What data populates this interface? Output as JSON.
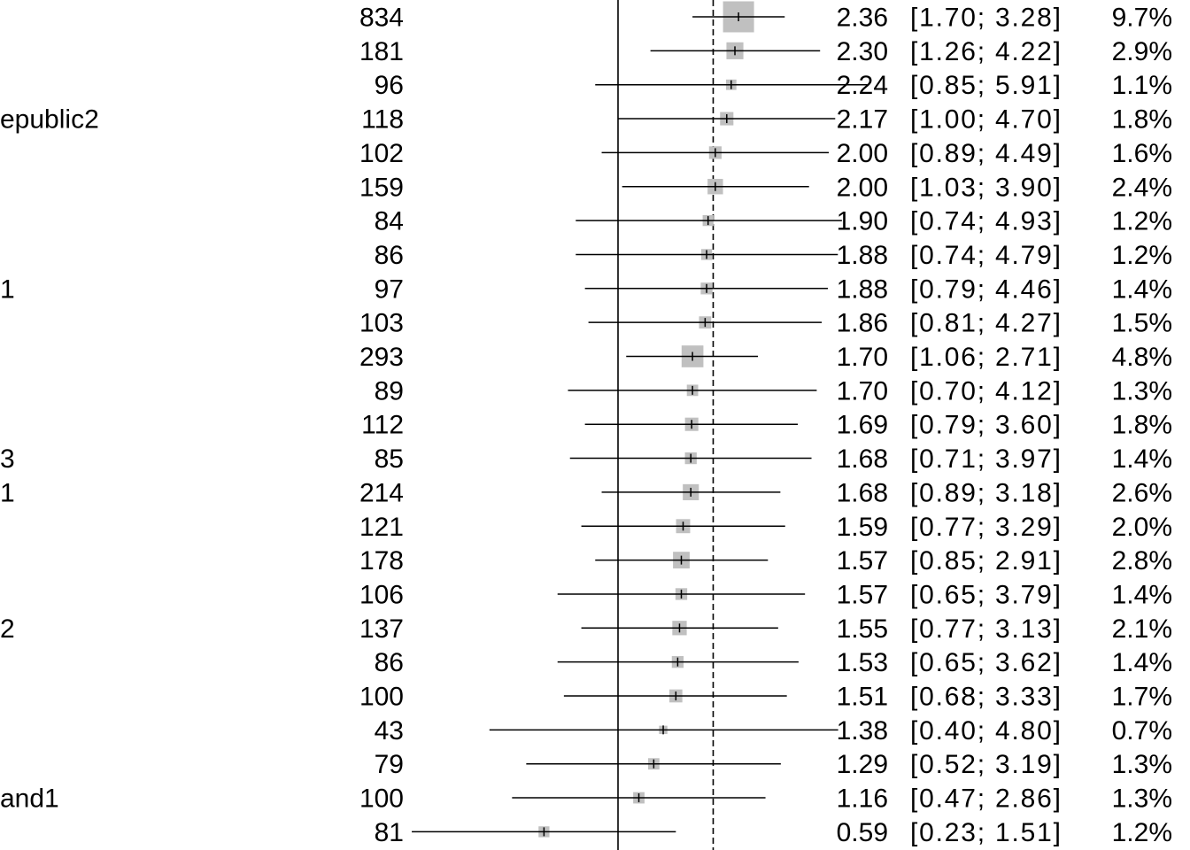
{
  "chart_data": {
    "type": "forest",
    "title": "",
    "xlabel": "",
    "reference_line": 1,
    "pooled_estimate_line": 1.97,
    "x_scale": "log",
    "columns": [
      "study",
      "total",
      "estimate",
      "ci",
      "weight"
    ],
    "rows": [
      {
        "study": "",
        "total": "834",
        "estimate": "2.36",
        "ci": "[1.70;  3.28]",
        "weight": "9.7%",
        "est": 2.36,
        "lo": 1.7,
        "hi": 3.28,
        "w": 9.7
      },
      {
        "study": "",
        "total": "181",
        "estimate": "2.30",
        "ci": "[1.26;  4.22]",
        "weight": "2.9%",
        "est": 2.3,
        "lo": 1.26,
        "hi": 4.22,
        "w": 2.9
      },
      {
        "study": "",
        "total": "96",
        "estimate": "2.24",
        "ci": "[0.85;  5.91]",
        "weight": "1.1%",
        "est": 2.24,
        "lo": 0.85,
        "hi": 5.91,
        "w": 1.1
      },
      {
        "study": "epublic2",
        "total": "118",
        "estimate": "2.17",
        "ci": "[1.00;  4.70]",
        "weight": "1.8%",
        "est": 2.17,
        "lo": 1.0,
        "hi": 4.7,
        "w": 1.8
      },
      {
        "study": "",
        "total": "102",
        "estimate": "2.00",
        "ci": "[0.89;  4.49]",
        "weight": "1.6%",
        "est": 2.0,
        "lo": 0.89,
        "hi": 4.49,
        "w": 1.6
      },
      {
        "study": "",
        "total": "159",
        "estimate": "2.00",
        "ci": "[1.03;  3.90]",
        "weight": "2.4%",
        "est": 2.0,
        "lo": 1.03,
        "hi": 3.9,
        "w": 2.4
      },
      {
        "study": "",
        "total": "84",
        "estimate": "1.90",
        "ci": "[0.74;  4.93]",
        "weight": "1.2%",
        "est": 1.9,
        "lo": 0.74,
        "hi": 4.93,
        "w": 1.2
      },
      {
        "study": "",
        "total": "86",
        "estimate": "1.88",
        "ci": "[0.74;  4.79]",
        "weight": "1.2%",
        "est": 1.88,
        "lo": 0.74,
        "hi": 4.79,
        "w": 1.2
      },
      {
        "study": "1",
        "total": "97",
        "estimate": "1.88",
        "ci": "[0.79;  4.46]",
        "weight": "1.4%",
        "est": 1.88,
        "lo": 0.79,
        "hi": 4.46,
        "w": 1.4
      },
      {
        "study": "",
        "total": "103",
        "estimate": "1.86",
        "ci": "[0.81;  4.27]",
        "weight": "1.5%",
        "est": 1.86,
        "lo": 0.81,
        "hi": 4.27,
        "w": 1.5
      },
      {
        "study": "",
        "total": "293",
        "estimate": "1.70",
        "ci": "[1.06;  2.71]",
        "weight": "4.8%",
        "est": 1.7,
        "lo": 1.06,
        "hi": 2.71,
        "w": 4.8
      },
      {
        "study": "",
        "total": "89",
        "estimate": "1.70",
        "ci": "[0.70;  4.12]",
        "weight": "1.3%",
        "est": 1.7,
        "lo": 0.7,
        "hi": 4.12,
        "w": 1.3
      },
      {
        "study": "",
        "total": "112",
        "estimate": "1.69",
        "ci": "[0.79;  3.60]",
        "weight": "1.8%",
        "est": 1.69,
        "lo": 0.79,
        "hi": 3.6,
        "w": 1.8
      },
      {
        "study": "3",
        "total": "85",
        "estimate": "1.68",
        "ci": "[0.71;  3.97]",
        "weight": "1.4%",
        "est": 1.68,
        "lo": 0.71,
        "hi": 3.97,
        "w": 1.4
      },
      {
        "study": "1",
        "total": "214",
        "estimate": "1.68",
        "ci": "[0.89;  3.18]",
        "weight": "2.6%",
        "est": 1.68,
        "lo": 0.89,
        "hi": 3.18,
        "w": 2.6
      },
      {
        "study": "",
        "total": "121",
        "estimate": "1.59",
        "ci": "[0.77;  3.29]",
        "weight": "2.0%",
        "est": 1.59,
        "lo": 0.77,
        "hi": 3.29,
        "w": 2.0
      },
      {
        "study": "",
        "total": "178",
        "estimate": "1.57",
        "ci": "[0.85;  2.91]",
        "weight": "2.8%",
        "est": 1.57,
        "lo": 0.85,
        "hi": 2.91,
        "w": 2.8
      },
      {
        "study": "",
        "total": "106",
        "estimate": "1.57",
        "ci": "[0.65;  3.79]",
        "weight": "1.4%",
        "est": 1.57,
        "lo": 0.65,
        "hi": 3.79,
        "w": 1.4
      },
      {
        "study": "2",
        "total": "137",
        "estimate": "1.55",
        "ci": "[0.77;  3.13]",
        "weight": "2.1%",
        "est": 1.55,
        "lo": 0.77,
        "hi": 3.13,
        "w": 2.1
      },
      {
        "study": "",
        "total": "86",
        "estimate": "1.53",
        "ci": "[0.65;  3.62]",
        "weight": "1.4%",
        "est": 1.53,
        "lo": 0.65,
        "hi": 3.62,
        "w": 1.4
      },
      {
        "study": "",
        "total": "100",
        "estimate": "1.51",
        "ci": "[0.68;  3.33]",
        "weight": "1.7%",
        "est": 1.51,
        "lo": 0.68,
        "hi": 3.33,
        "w": 1.7
      },
      {
        "study": "",
        "total": "43",
        "estimate": "1.38",
        "ci": "[0.40;  4.80]",
        "weight": "0.7%",
        "est": 1.38,
        "lo": 0.4,
        "hi": 4.8,
        "w": 0.7
      },
      {
        "study": "",
        "total": "79",
        "estimate": "1.29",
        "ci": "[0.52;  3.19]",
        "weight": "1.3%",
        "est": 1.29,
        "lo": 0.52,
        "hi": 3.19,
        "w": 1.3
      },
      {
        "study": "and1",
        "total": "100",
        "estimate": "1.16",
        "ci": "[0.47;  2.86]",
        "weight": "1.3%",
        "est": 1.16,
        "lo": 0.47,
        "hi": 2.86,
        "w": 1.3
      },
      {
        "study": "",
        "total": "81",
        "estimate": "0.59",
        "ci": "[0.23;  1.51]",
        "weight": "1.2%",
        "est": 0.59,
        "lo": 0.23,
        "hi": 1.51,
        "w": 1.2
      }
    ],
    "colors": {
      "box": "#c0c0c0",
      "line": "#000000",
      "background": "#ffffff"
    }
  }
}
